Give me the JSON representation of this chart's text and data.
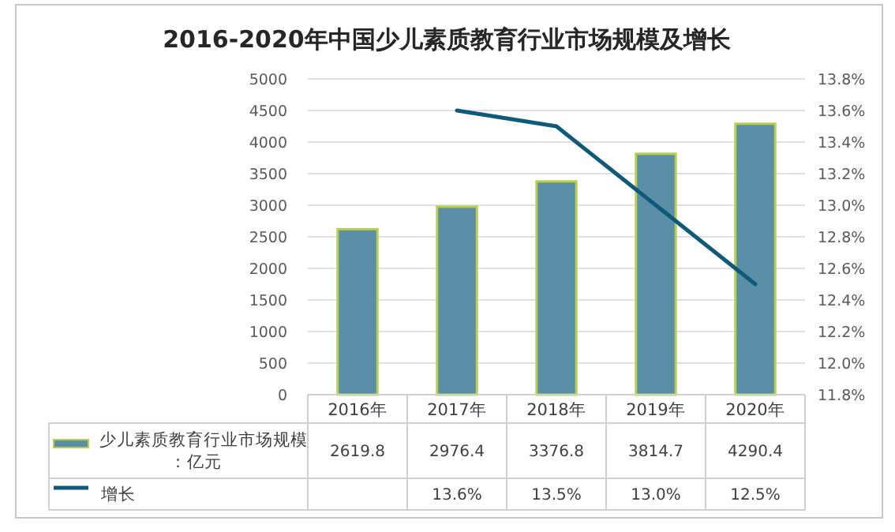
{
  "chart_data": {
    "type": "bar",
    "title": "2016-2020年中国少儿素质教育行业市场规模及增长",
    "categories": [
      "2016年",
      "2017年",
      "2018年",
      "2019年",
      "2020年"
    ],
    "series": [
      {
        "name": "少儿素质教育行业市场规模：亿元",
        "color": "#5b8fa8",
        "values": [
          2619.8,
          2976.4,
          3376.8,
          3814.7,
          4290.4
        ],
        "value_labels": [
          "2619.8",
          "2976.4",
          "3376.8",
          "3814.7",
          "4290.4"
        ]
      },
      {
        "name": "增长",
        "type": "line",
        "axis": "y2",
        "color": "#0f5a78",
        "values": [
          null,
          13.6,
          13.5,
          13.0,
          12.5
        ],
        "value_labels": [
          null,
          "13.6%",
          "13.5%",
          "13.0%",
          "12.5%"
        ]
      }
    ],
    "ylim": [
      0,
      5000
    ],
    "yticks": [
      0,
      500,
      1000,
      1500,
      2000,
      2500,
      3000,
      3500,
      4000,
      4500,
      5000
    ],
    "y2lim": [
      11.8,
      13.8
    ],
    "y2ticks": [
      {
        "value": 11.8,
        "label": "11.8%"
      },
      {
        "value": 12.0,
        "label": "12.0%"
      },
      {
        "value": 12.2,
        "label": "12.2%"
      },
      {
        "value": 12.4,
        "label": "12.4%"
      },
      {
        "value": 12.6,
        "label": "12.6%"
      },
      {
        "value": 12.8,
        "label": "12.8%"
      },
      {
        "value": 13.0,
        "label": "13.0%"
      },
      {
        "value": 13.2,
        "label": "13.2%"
      },
      {
        "value": 13.4,
        "label": "13.4%"
      },
      {
        "value": 13.6,
        "label": "13.6%"
      },
      {
        "value": 13.8,
        "label": "13.8%"
      }
    ],
    "grid": "y",
    "legend": "bottom"
  }
}
